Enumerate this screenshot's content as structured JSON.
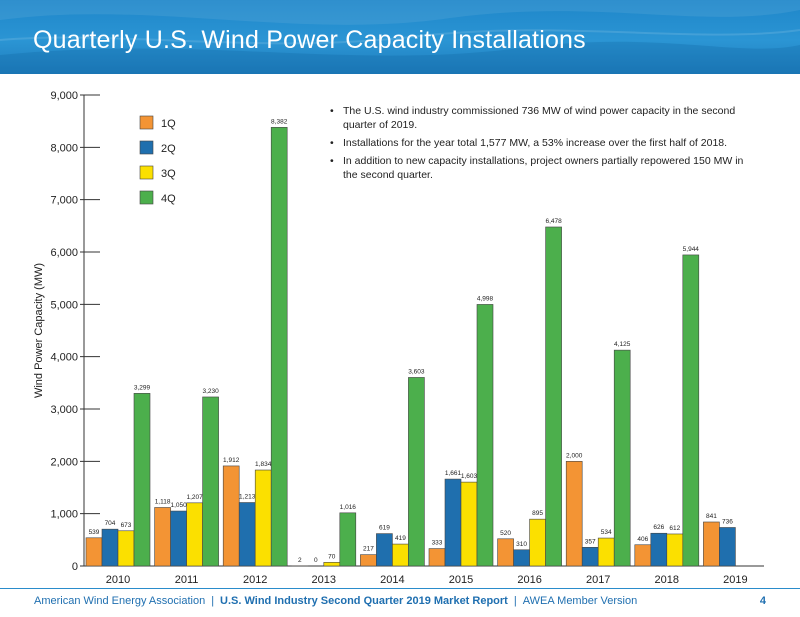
{
  "header": {
    "title": "Quarterly U.S. Wind Power Capacity Installations"
  },
  "notes": [
    "The U.S. wind industry commissioned 736 MW of wind power capacity in the second quarter of 2019.",
    "Installations for the year total 1,577 MW, a 53% increase over the first half of 2018.",
    "In addition to new capacity installations, project owners partially repowered 150 MW in the second quarter."
  ],
  "footer": {
    "org": "American Wind Energy Association",
    "report": "U.S. Wind Industry Second Quarter 2019 Market Report",
    "version": "AWEA Member Version",
    "page": "4"
  },
  "colors": {
    "1Q": "#f39434",
    "2Q": "#1f6fae",
    "3Q": "#fbe000",
    "4Q": "#4caf4c",
    "accent": "#2a8ccb"
  },
  "chart_data": {
    "type": "bar",
    "title": "",
    "ylabel": "Wind Power Capacity (MW)",
    "xlabel": "",
    "ylim": [
      0,
      9000
    ],
    "yticks": [
      "0",
      "1,000",
      "2,000",
      "3,000",
      "4,000",
      "5,000",
      "6,000",
      "7,000",
      "8,000",
      "9,000"
    ],
    "ytick_values": [
      0,
      1000,
      2000,
      3000,
      4000,
      5000,
      6000,
      7000,
      8000,
      9000
    ],
    "grid": false,
    "legend_position": "top-left",
    "categories": [
      "2010",
      "2011",
      "2012",
      "2013",
      "2014",
      "2015",
      "2016",
      "2017",
      "2018",
      "2019"
    ],
    "series": [
      {
        "name": "1Q",
        "values": [
          539,
          1118,
          1912,
          2,
          217,
          333,
          520,
          2000,
          406,
          841
        ],
        "labels": [
          "539",
          "1,118",
          "1,912",
          "2",
          "217",
          "333",
          "520",
          "2,000",
          "406",
          "841"
        ]
      },
      {
        "name": "2Q",
        "values": [
          704,
          1050,
          1213,
          0,
          619,
          1661,
          310,
          357,
          626,
          736
        ],
        "labels": [
          "704",
          "1,050",
          "1,213",
          "0",
          "619",
          "1,661",
          "310",
          "357",
          "626",
          "736"
        ]
      },
      {
        "name": "3Q",
        "values": [
          673,
          1207,
          1834,
          70,
          419,
          1603,
          895,
          534,
          612,
          null
        ],
        "labels": [
          "673",
          "1,207",
          "1,834",
          "70",
          "419",
          "1,603",
          "895",
          "534",
          "612",
          null
        ]
      },
      {
        "name": "4Q",
        "values": [
          3299,
          3230,
          8382,
          1016,
          3603,
          4998,
          6478,
          4125,
          5944,
          null
        ],
        "labels": [
          "3,299",
          "3,230",
          "8,382",
          "1,016",
          "3,603",
          "4,998",
          "6,478",
          "4,125",
          "5,944",
          null
        ]
      }
    ]
  }
}
